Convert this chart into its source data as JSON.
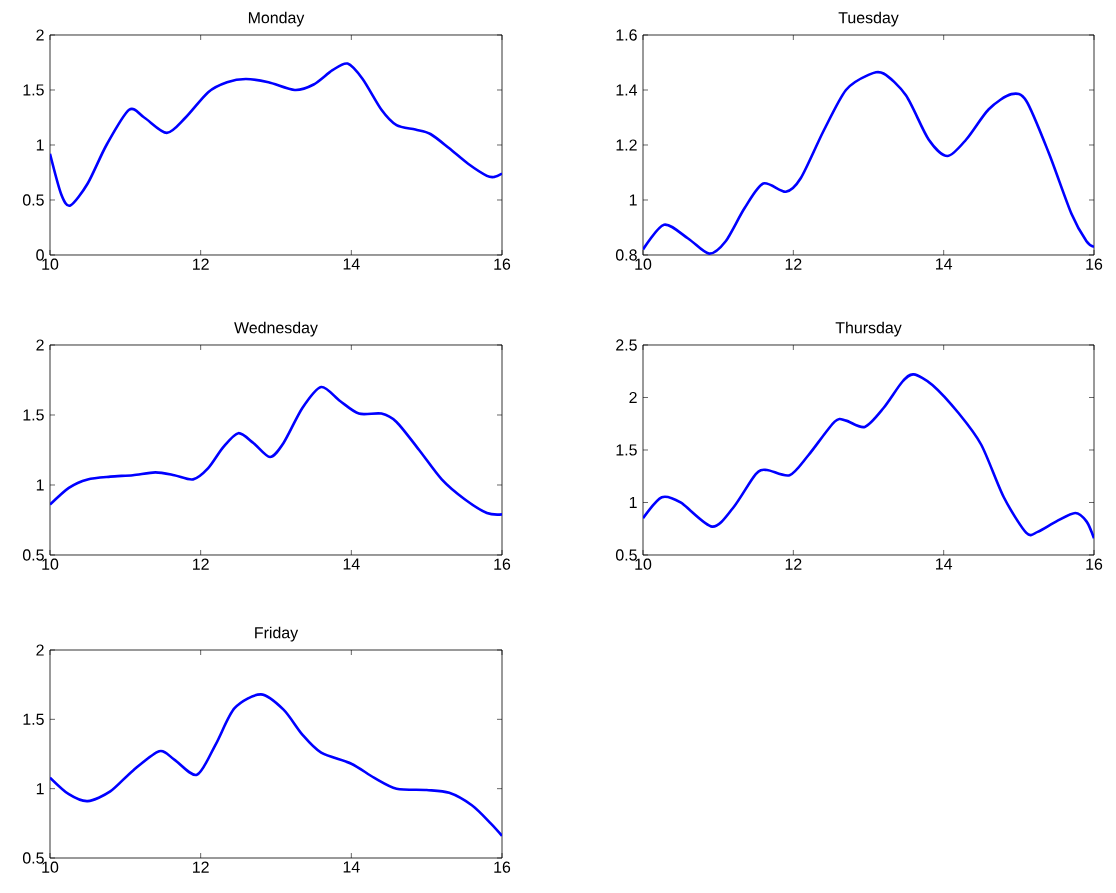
{
  "chart_data": [
    {
      "type": "line",
      "title": "Monday",
      "color": "#0000ff",
      "xlim": [
        10,
        16
      ],
      "ylim": [
        0,
        2
      ],
      "xticks": [
        10,
        12,
        14,
        16
      ],
      "yticks": [
        0,
        0.5,
        1,
        1.5,
        2
      ],
      "x": [
        10,
        10.15,
        10.27,
        10.5,
        10.75,
        11.05,
        11.25,
        11.55,
        11.8,
        12.1,
        12.35,
        12.6,
        12.9,
        13.25,
        13.5,
        13.75,
        13.95,
        14.15,
        14.4,
        14.6,
        14.85,
        15.05,
        15.3,
        15.55,
        15.8,
        15.9,
        16
      ],
      "values": [
        0.92,
        0.55,
        0.45,
        0.65,
        1.0,
        1.32,
        1.25,
        1.11,
        1.25,
        1.48,
        1.57,
        1.6,
        1.57,
        1.5,
        1.55,
        1.68,
        1.74,
        1.6,
        1.32,
        1.18,
        1.14,
        1.1,
        0.97,
        0.83,
        0.72,
        0.71,
        0.74
      ]
    },
    {
      "type": "line",
      "title": "Tuesday",
      "color": "#0000ff",
      "xlim": [
        10,
        16
      ],
      "ylim": [
        0.8,
        1.6
      ],
      "xticks": [
        10,
        12,
        14,
        16
      ],
      "yticks": [
        0.8,
        1,
        1.2,
        1.4,
        1.6
      ],
      "x": [
        10,
        10.28,
        10.6,
        10.88,
        11.1,
        11.35,
        11.6,
        11.9,
        12.1,
        12.4,
        12.7,
        13.0,
        13.2,
        13.5,
        13.8,
        14.05,
        14.3,
        14.6,
        14.9,
        15.1,
        15.4,
        15.7,
        15.9,
        16
      ],
      "values": [
        0.82,
        0.91,
        0.86,
        0.805,
        0.85,
        0.97,
        1.06,
        1.03,
        1.08,
        1.25,
        1.4,
        1.455,
        1.46,
        1.38,
        1.22,
        1.16,
        1.22,
        1.33,
        1.385,
        1.36,
        1.17,
        0.95,
        0.85,
        0.83
      ]
    },
    {
      "type": "line",
      "title": "Wednesday",
      "color": "#0000ff",
      "xlim": [
        10,
        16
      ],
      "ylim": [
        0.5,
        2
      ],
      "xticks": [
        10,
        12,
        14,
        16
      ],
      "yticks": [
        0.5,
        1,
        1.5,
        2
      ],
      "x": [
        10,
        10.25,
        10.5,
        10.8,
        11.1,
        11.4,
        11.65,
        11.9,
        12.1,
        12.3,
        12.5,
        12.7,
        12.92,
        13.1,
        13.35,
        13.6,
        13.85,
        14.1,
        14.4,
        14.6,
        14.9,
        15.2,
        15.5,
        15.8,
        16
      ],
      "values": [
        0.86,
        0.98,
        1.04,
        1.06,
        1.07,
        1.09,
        1.07,
        1.04,
        1.12,
        1.27,
        1.37,
        1.3,
        1.2,
        1.3,
        1.55,
        1.7,
        1.6,
        1.51,
        1.51,
        1.45,
        1.25,
        1.04,
        0.9,
        0.8,
        0.79
      ]
    },
    {
      "type": "line",
      "title": "Thursday",
      "color": "#0000ff",
      "xlim": [
        10,
        16
      ],
      "ylim": [
        0.5,
        2.5
      ],
      "xticks": [
        10,
        12,
        14,
        16
      ],
      "yticks": [
        0.5,
        1,
        1.5,
        2,
        2.5
      ],
      "x": [
        10,
        10.25,
        10.5,
        10.92,
        11.2,
        11.5,
        11.65,
        11.95,
        12.2,
        12.55,
        12.7,
        12.95,
        13.2,
        13.45,
        13.6,
        13.85,
        14.2,
        14.5,
        14.8,
        15.1,
        15.25,
        15.5,
        15.75,
        15.9,
        16
      ],
      "values": [
        0.85,
        1.05,
        1.0,
        0.77,
        0.95,
        1.27,
        1.31,
        1.26,
        1.45,
        1.77,
        1.78,
        1.72,
        1.9,
        2.15,
        2.22,
        2.12,
        1.85,
        1.55,
        1.05,
        0.71,
        0.72,
        0.82,
        0.9,
        0.82,
        0.66
      ]
    },
    {
      "type": "line",
      "title": "Friday",
      "color": "#0000ff",
      "xlim": [
        10,
        16
      ],
      "ylim": [
        0.5,
        2
      ],
      "xticks": [
        10,
        12,
        14,
        16
      ],
      "yticks": [
        0.5,
        1,
        1.5,
        2
      ],
      "x": [
        10,
        10.25,
        10.5,
        10.8,
        11.1,
        11.45,
        11.65,
        11.95,
        12.2,
        12.45,
        12.8,
        13.1,
        13.35,
        13.6,
        14.0,
        14.3,
        14.6,
        15.0,
        15.3,
        15.6,
        15.85,
        16
      ],
      "values": [
        1.08,
        0.96,
        0.91,
        0.98,
        1.13,
        1.27,
        1.21,
        1.1,
        1.32,
        1.58,
        1.68,
        1.57,
        1.39,
        1.26,
        1.18,
        1.08,
        1.0,
        0.99,
        0.97,
        0.88,
        0.75,
        0.66
      ]
    }
  ]
}
